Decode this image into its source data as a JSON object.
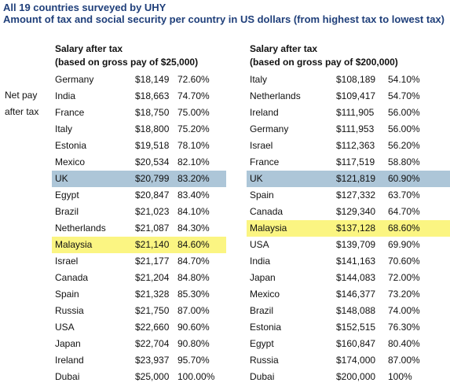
{
  "title": {
    "line1": "All 19 countries surveyed by UHY",
    "line2": "Amount of tax and social security per country in US dollars (from highest tax to lowest tax)"
  },
  "side_label": {
    "line1": "Net pay",
    "line2": "after tax"
  },
  "colors": {
    "title": "#1f3f7a",
    "uk_highlight": "#adc6d8",
    "malaysia_highlight": "#fbf582"
  },
  "left_table": {
    "header_line1": "Salary after tax",
    "header_line2": "(based on gross pay of $25,000)",
    "rows": [
      {
        "country": "Germany",
        "amount": "$18,149",
        "pct": "72.60%"
      },
      {
        "country": "India",
        "amount": "$18,663",
        "pct": "74.70%"
      },
      {
        "country": "France",
        "amount": "$18,750",
        "pct": "75.00%"
      },
      {
        "country": "Italy",
        "amount": "$18,800",
        "pct": "75.20%"
      },
      {
        "country": "Estonia",
        "amount": "$19,518",
        "pct": "78.10%"
      },
      {
        "country": "Mexico",
        "amount": "$20,534",
        "pct": "82.10%"
      },
      {
        "country": "UK",
        "amount": "$20,799",
        "pct": "83.20%",
        "highlight": "blue"
      },
      {
        "country": "Egypt",
        "amount": "$20,847",
        "pct": "83.40%"
      },
      {
        "country": "Brazil",
        "amount": "$21,023",
        "pct": "84.10%"
      },
      {
        "country": "Netherlands",
        "amount": "$21,087",
        "pct": "84.30%"
      },
      {
        "country": "Malaysia",
        "amount": "$21,140",
        "pct": "84.60%",
        "highlight": "yellow"
      },
      {
        "country": "Israel",
        "amount": "$21,177",
        "pct": "84.70%"
      },
      {
        "country": "Canada",
        "amount": "$21,204",
        "pct": "84.80%"
      },
      {
        "country": "Spain",
        "amount": "$21,328",
        "pct": "85.30%"
      },
      {
        "country": "Russia",
        "amount": "$21,750",
        "pct": "87.00%"
      },
      {
        "country": "USA",
        "amount": "$22,660",
        "pct": "90.60%"
      },
      {
        "country": "Japan",
        "amount": "$22,704",
        "pct": "90.80%"
      },
      {
        "country": "Ireland",
        "amount": "$23,937",
        "pct": "95.70%"
      },
      {
        "country": "Dubai",
        "amount": "$25,000",
        "pct": "100.00%"
      }
    ]
  },
  "right_table": {
    "header_line1": "Salary after tax",
    "header_line2": "(based on gross pay of $200,000)",
    "rows": [
      {
        "country": "Italy",
        "amount": "$108,189",
        "pct": "54.10%"
      },
      {
        "country": "Netherlands",
        "amount": "$109,417",
        "pct": "54.70%"
      },
      {
        "country": "Ireland",
        "amount": "$111,905",
        "pct": "56.00%"
      },
      {
        "country": "Germany",
        "amount": "$111,953",
        "pct": "56.00%"
      },
      {
        "country": "Israel",
        "amount": "$112,363",
        "pct": "56.20%"
      },
      {
        "country": "France",
        "amount": "$117,519",
        "pct": "58.80%"
      },
      {
        "country": "UK",
        "amount": "$121,819",
        "pct": "60.90%",
        "highlight": "blue"
      },
      {
        "country": "Spain",
        "amount": "$127,332",
        "pct": "63.70%"
      },
      {
        "country": "Canada",
        "amount": "$129,340",
        "pct": "64.70%"
      },
      {
        "country": "Malaysia",
        "amount": "$137,128",
        "pct": "68.60%",
        "highlight": "yellow"
      },
      {
        "country": "USA",
        "amount": "$139,709",
        "pct": "69.90%"
      },
      {
        "country": "India",
        "amount": "$141,163",
        "pct": "70.60%"
      },
      {
        "country": "Japan",
        "amount": "$144,083",
        "pct": "72.00%"
      },
      {
        "country": "Mexico",
        "amount": "$146,377",
        "pct": "73.20%"
      },
      {
        "country": "Brazil",
        "amount": "$148,088",
        "pct": "74.00%"
      },
      {
        "country": "Estonia",
        "amount": "$152,515",
        "pct": "76.30%"
      },
      {
        "country": "Egypt",
        "amount": "$160,847",
        "pct": "80.40%"
      },
      {
        "country": "Russia",
        "amount": "$174,000",
        "pct": "87.00%"
      },
      {
        "country": "Dubai",
        "amount": "$200,000",
        "pct": "100%"
      }
    ]
  }
}
